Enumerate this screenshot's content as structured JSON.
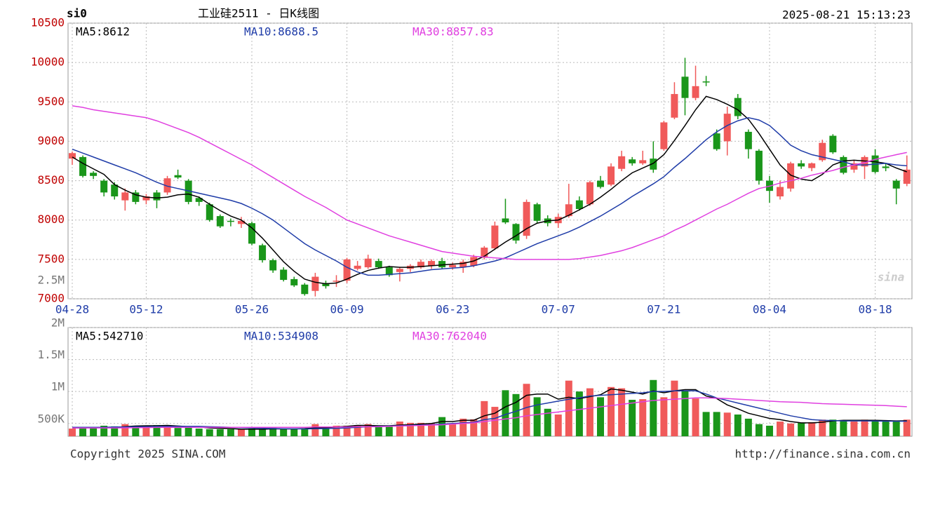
{
  "header": {
    "symbol": "si0",
    "title": "工业硅2511 - 日K线图",
    "timestamp": "2025-08-21 15:13:23"
  },
  "chart_data": [
    {
      "type": "candlestick",
      "categories": [
        "04-28",
        null,
        null,
        null,
        null,
        null,
        null,
        "05-12",
        null,
        null,
        null,
        null,
        null,
        null,
        null,
        null,
        null,
        "05-26",
        null,
        null,
        null,
        null,
        null,
        null,
        null,
        null,
        "06-09",
        null,
        null,
        null,
        null,
        null,
        null,
        null,
        null,
        null,
        "06-23",
        null,
        null,
        null,
        null,
        null,
        null,
        null,
        null,
        null,
        "07-07",
        null,
        null,
        null,
        null,
        null,
        null,
        null,
        null,
        null,
        "07-21",
        null,
        null,
        null,
        null,
        null,
        null,
        null,
        null,
        null,
        "08-04",
        null,
        null,
        null,
        null,
        null,
        null,
        null,
        null,
        null,
        "08-18",
        null,
        null,
        null
      ],
      "open": [
        8780,
        8800,
        8600,
        8500,
        8450,
        8250,
        8350,
        8250,
        8350,
        8350,
        8570,
        8500,
        8280,
        8200,
        8050,
        7990,
        7950,
        7960,
        7680,
        7490,
        7370,
        7250,
        7180,
        7100,
        7200,
        7220,
        7230,
        7380,
        7400,
        7480,
        7400,
        7340,
        7380,
        7400,
        7420,
        7480,
        7400,
        7400,
        7420,
        7520,
        7640,
        8020,
        7950,
        7800,
        8200,
        8020,
        7960,
        8050,
        8250,
        8200,
        8500,
        8450,
        8650,
        8770,
        8720,
        8780,
        8900,
        9300,
        9820,
        9550,
        9760,
        9100,
        9000,
        9550,
        9120,
        8880,
        8500,
        8300,
        8400,
        8720,
        8660,
        8760,
        9070,
        8800,
        8640,
        8680,
        8820,
        8680,
        8500,
        8460
      ],
      "high": [
        8870,
        8820,
        8620,
        8520,
        8480,
        8400,
        8380,
        8330,
        8380,
        8560,
        8640,
        8520,
        8300,
        8220,
        8070,
        8020,
        8040,
        7980,
        7700,
        7510,
        7400,
        7280,
        7200,
        7330,
        7230,
        7300,
        7520,
        7480,
        7560,
        7510,
        7420,
        7400,
        7440,
        7500,
        7500,
        7520,
        7460,
        7500,
        7560,
        7670,
        7980,
        8270,
        7960,
        8260,
        8220,
        8060,
        8080,
        8460,
        8300,
        8500,
        8560,
        8720,
        8880,
        8800,
        8880,
        9000,
        9260,
        9750,
        10060,
        9960,
        9830,
        9150,
        9440,
        9600,
        9150,
        8900,
        8560,
        8500,
        8740,
        8760,
        8730,
        9020,
        9090,
        8820,
        8760,
        8820,
        8900,
        8720,
        8520,
        8820
      ],
      "low": [
        8700,
        8540,
        8520,
        8300,
        8260,
        8120,
        8200,
        8200,
        8150,
        8320,
        8520,
        8200,
        8180,
        7980,
        7900,
        7920,
        7900,
        7680,
        7460,
        7330,
        7220,
        7150,
        7040,
        7030,
        7130,
        7150,
        7200,
        7360,
        7380,
        7380,
        7280,
        7220,
        7340,
        7380,
        7380,
        7380,
        7370,
        7330,
        7400,
        7500,
        7620,
        7950,
        7700,
        7760,
        7960,
        7920,
        7900,
        8030,
        8120,
        8180,
        8400,
        8430,
        8620,
        8690,
        8700,
        8600,
        8880,
        9280,
        9330,
        9520,
        9700,
        8880,
        8820,
        9280,
        8780,
        8450,
        8220,
        8260,
        8360,
        8650,
        8620,
        8740,
        8840,
        8580,
        8600,
        8520,
        8590,
        8620,
        8200,
        8430
      ],
      "close": [
        8850,
        8560,
        8560,
        8350,
        8300,
        8350,
        8230,
        8300,
        8250,
        8530,
        8540,
        8230,
        8230,
        8000,
        7920,
        7980,
        7990,
        7700,
        7490,
        7360,
        7240,
        7170,
        7060,
        7280,
        7160,
        7230,
        7500,
        7420,
        7510,
        7400,
        7300,
        7380,
        7420,
        7470,
        7480,
        7400,
        7430,
        7470,
        7530,
        7650,
        7930,
        7970,
        7740,
        8230,
        7990,
        7960,
        8040,
        8200,
        8140,
        8480,
        8420,
        8680,
        8810,
        8720,
        8760,
        8640,
        9240,
        9600,
        9550,
        9700,
        9750,
        8900,
        9350,
        9320,
        8900,
        8500,
        8370,
        8420,
        8720,
        8680,
        8720,
        8980,
        8860,
        8600,
        8720,
        8800,
        8610,
        8660,
        8400,
        8640
      ],
      "up_color": "#f05a5a",
      "down_color": "#1a961a",
      "series": [
        {
          "name": "MA5:8612",
          "color": "#000000",
          "values": [
            8800,
            8720,
            8650,
            8580,
            8450,
            8380,
            8320,
            8290,
            8280,
            8290,
            8320,
            8330,
            8290,
            8200,
            8120,
            8050,
            8000,
            7900,
            7770,
            7620,
            7470,
            7350,
            7250,
            7210,
            7190,
            7200,
            7250,
            7310,
            7360,
            7390,
            7410,
            7400,
            7400,
            7410,
            7420,
            7430,
            7440,
            7450,
            7480,
            7540,
            7630,
            7720,
            7800,
            7890,
            7960,
            7990,
            8000,
            8060,
            8130,
            8200,
            8290,
            8390,
            8500,
            8600,
            8660,
            8720,
            8830,
            9010,
            9200,
            9400,
            9570,
            9530,
            9470,
            9400,
            9280,
            9100,
            8900,
            8700,
            8570,
            8520,
            8500,
            8580,
            8700,
            8750,
            8760,
            8750,
            8740,
            8720,
            8660,
            8612
          ]
        },
        {
          "name": "MA10:8688.5",
          "color": "#1f3ca8",
          "values": [
            8900,
            8850,
            8800,
            8750,
            8700,
            8650,
            8600,
            8540,
            8480,
            8430,
            8400,
            8370,
            8340,
            8310,
            8280,
            8250,
            8210,
            8150,
            8080,
            8000,
            7900,
            7800,
            7700,
            7620,
            7550,
            7480,
            7400,
            7340,
            7300,
            7300,
            7310,
            7320,
            7330,
            7350,
            7370,
            7380,
            7390,
            7400,
            7420,
            7450,
            7480,
            7520,
            7580,
            7640,
            7700,
            7750,
            7800,
            7850,
            7910,
            7980,
            8050,
            8130,
            8210,
            8300,
            8380,
            8460,
            8550,
            8670,
            8780,
            8900,
            9020,
            9120,
            9200,
            9260,
            9300,
            9270,
            9200,
            9080,
            8950,
            8880,
            8830,
            8800,
            8770,
            8740,
            8700,
            8700,
            8710,
            8720,
            8700,
            8688.5
          ]
        },
        {
          "name": "MA30:8857.83",
          "color": "#e040e0",
          "values": [
            9450,
            9430,
            9400,
            9380,
            9360,
            9340,
            9320,
            9300,
            9260,
            9210,
            9160,
            9110,
            9050,
            8980,
            8910,
            8840,
            8770,
            8700,
            8620,
            8540,
            8460,
            8380,
            8300,
            8230,
            8160,
            8080,
            8000,
            7950,
            7900,
            7850,
            7800,
            7760,
            7720,
            7680,
            7640,
            7600,
            7580,
            7560,
            7540,
            7530,
            7520,
            7510,
            7500,
            7500,
            7500,
            7500,
            7500,
            7500,
            7510,
            7530,
            7550,
            7580,
            7610,
            7650,
            7700,
            7750,
            7800,
            7870,
            7930,
            8000,
            8070,
            8140,
            8200,
            8270,
            8340,
            8400,
            8430,
            8470,
            8500,
            8530,
            8570,
            8600,
            8630,
            8670,
            8700,
            8730,
            8770,
            8800,
            8830,
            8857.83
          ]
        }
      ],
      "ylim": [
        7000,
        10500
      ],
      "yticks": [
        7000,
        7500,
        8000,
        8500,
        9000,
        9500,
        10000,
        10500
      ],
      "grid": true,
      "annotation": "2.5M"
    },
    {
      "type": "bar",
      "values": [
        420000,
        420000,
        430000,
        465000,
        455000,
        490000,
        465000,
        445000,
        475000,
        465000,
        430000,
        445000,
        420000,
        410000,
        410000,
        410000,
        410000,
        420000,
        410000,
        430000,
        420000,
        410000,
        420000,
        490000,
        445000,
        465000,
        465000,
        475000,
        490000,
        445000,
        465000,
        530000,
        510000,
        510000,
        500000,
        600000,
        490000,
        575000,
        565000,
        850000,
        760000,
        1020000,
        960000,
        1120000,
        910000,
        730000,
        640000,
        1170000,
        1000000,
        1050000,
        910000,
        1070000,
        1050000,
        870000,
        880000,
        1180000,
        910000,
        1170000,
        1010000,
        890000,
        680000,
        680000,
        670000,
        640000,
        575000,
        490000,
        465000,
        530000,
        500000,
        510000,
        520000,
        560000,
        560000,
        540000,
        530000,
        560000,
        540000,
        530000,
        540000,
        560000
      ],
      "series": [
        {
          "name": "MA5:542710",
          "color": "#000000",
          "values": [
            430000,
            430000,
            435000,
            440000,
            440000,
            450000,
            460000,
            465000,
            465000,
            470000,
            460000,
            450000,
            445000,
            430000,
            425000,
            420000,
            410000,
            410000,
            410000,
            415000,
            415000,
            415000,
            420000,
            430000,
            435000,
            445000,
            455000,
            470000,
            470000,
            465000,
            465000,
            475000,
            480000,
            490000,
            500000,
            530000,
            530000,
            550000,
            550000,
            620000,
            660000,
            760000,
            830000,
            940000,
            960000,
            960000,
            880000,
            910000,
            890000,
            920000,
            950000,
            1040000,
            1020000,
            990000,
            960000,
            1010000,
            980000,
            1010000,
            1030000,
            1030000,
            930000,
            890000,
            790000,
            730000,
            660000,
            620000,
            580000,
            560000,
            530000,
            510000,
            510000,
            520000,
            540000,
            550000,
            550000,
            550000,
            550000,
            545000,
            540000,
            542710
          ]
        },
        {
          "name": "MA10:534908",
          "color": "#1f3ca8",
          "values": [
            440000,
            440000,
            440000,
            440000,
            445000,
            445000,
            450000,
            450000,
            455000,
            455000,
            455000,
            455000,
            455000,
            450000,
            445000,
            440000,
            435000,
            430000,
            425000,
            420000,
            418000,
            416000,
            415000,
            418000,
            420000,
            425000,
            430000,
            440000,
            450000,
            455000,
            460000,
            465000,
            470000,
            475000,
            480000,
            490000,
            500000,
            510000,
            520000,
            560000,
            580000,
            640000,
            690000,
            750000,
            790000,
            820000,
            850000,
            880000,
            900000,
            930000,
            940000,
            950000,
            960000,
            970000,
            980000,
            1000000,
            1000000,
            1010000,
            1010000,
            1010000,
            960000,
            900000,
            860000,
            820000,
            780000,
            740000,
            700000,
            660000,
            620000,
            590000,
            560000,
            550000,
            545000,
            540000,
            540000,
            540000,
            538000,
            536000,
            535000,
            534908
          ]
        },
        {
          "name": "MA30:762040",
          "color": "#e040e0",
          "values": [
            430000,
            430000,
            430000,
            430000,
            430000,
            432000,
            434000,
            436000,
            438000,
            440000,
            440000,
            440000,
            440000,
            440000,
            440000,
            440000,
            440000,
            440000,
            440000,
            440000,
            440000,
            440000,
            440000,
            445000,
            445000,
            445000,
            445000,
            450000,
            450000,
            450000,
            455000,
            460000,
            465000,
            470000,
            475000,
            480000,
            490000,
            500000,
            510000,
            530000,
            550000,
            570000,
            590000,
            620000,
            640000,
            660000,
            680000,
            700000,
            720000,
            740000,
            760000,
            780000,
            800000,
            820000,
            840000,
            860000,
            870000,
            880000,
            890000,
            900000,
            900000,
            895000,
            890000,
            880000,
            870000,
            860000,
            850000,
            840000,
            835000,
            830000,
            820000,
            810000,
            805000,
            800000,
            795000,
            790000,
            785000,
            780000,
            770000,
            762040
          ]
        }
      ],
      "ylim": [
        300000,
        2000000
      ],
      "yticks": [
        {
          "value": 500000,
          "label": "500K"
        },
        {
          "value": 1000000,
          "label": "1M"
        },
        {
          "value": 1500000,
          "label": "1.5M"
        },
        {
          "value": 2000000,
          "label": "2M"
        }
      ],
      "grid": true
    }
  ],
  "footer": {
    "copyright": "Copyright 2025 SINA.COM",
    "url": "http://finance.sina.com.cn"
  },
  "watermark": "sina"
}
